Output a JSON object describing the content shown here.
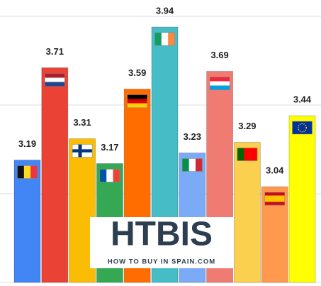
{
  "chart_data": {
    "type": "bar",
    "values": [
      3.19,
      3.71,
      3.31,
      3.17,
      3.59,
      3.94,
      3.23,
      3.69,
      3.29,
      3.04,
      3.44
    ],
    "colors": [
      "#4285f4",
      "#ea4335",
      "#fbbc04",
      "#34a853",
      "#ff6d01",
      "#46bdc6",
      "#7baaf7",
      "#f07b72",
      "#fcd04f",
      "#ff994d",
      "#ffff00"
    ],
    "ylim": [
      2.5,
      4.0
    ],
    "yticks": [
      2.5,
      3.0,
      3.5,
      4.0
    ],
    "grid": true,
    "watermark": {
      "title": "HTBIS",
      "subtitle": "HOW TO BUY IN SPAIN.COM"
    }
  }
}
